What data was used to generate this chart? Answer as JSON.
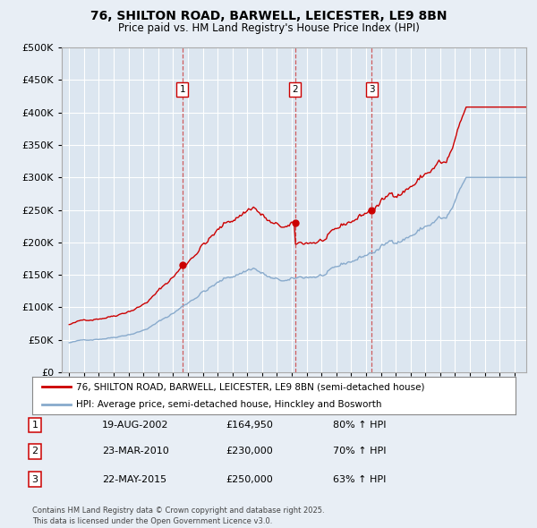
{
  "title1": "76, SHILTON ROAD, BARWELL, LEICESTER, LE9 8BN",
  "title2": "Price paid vs. HM Land Registry's House Price Index (HPI)",
  "bg_color": "#e8eef5",
  "plot_bg_color": "#dce6f0",
  "grid_color": "#ffffff",
  "red_color": "#cc0000",
  "blue_color": "#88aacc",
  "sale_dates_num": [
    2002.63,
    2010.22,
    2015.39
  ],
  "sale_prices": [
    164950,
    230000,
    250000
  ],
  "sale_labels": [
    "1",
    "2",
    "3"
  ],
  "vline_color": "#cc4444",
  "table_rows": [
    [
      "1",
      "19-AUG-2002",
      "£164,950",
      "80% ↑ HPI"
    ],
    [
      "2",
      "23-MAR-2010",
      "£230,000",
      "70% ↑ HPI"
    ],
    [
      "3",
      "22-MAY-2015",
      "£250,000",
      "63% ↑ HPI"
    ]
  ],
  "legend_line1": "76, SHILTON ROAD, BARWELL, LEICESTER, LE9 8BN (semi-detached house)",
  "legend_line2": "HPI: Average price, semi-detached house, Hinckley and Bosworth",
  "footnote": "Contains HM Land Registry data © Crown copyright and database right 2025.\nThis data is licensed under the Open Government Licence v3.0.",
  "ylim": [
    0,
    500000
  ],
  "yticks": [
    0,
    50000,
    100000,
    150000,
    200000,
    250000,
    300000,
    350000,
    400000,
    450000,
    500000
  ],
  "xlim_start": 1994.5,
  "xlim_end": 2025.8
}
